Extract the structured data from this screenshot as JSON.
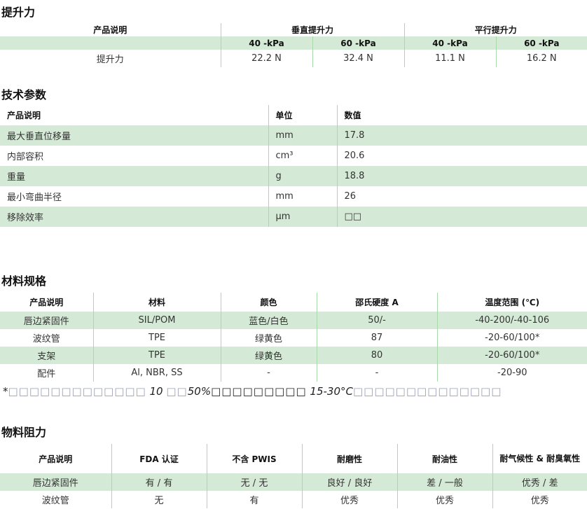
{
  "lift": {
    "title": "提升力",
    "col_product": "产品说明",
    "group_vertical": "垂直提升力",
    "group_parallel": "平行提升力",
    "pressures": [
      "40 -kPa",
      "60 -kPa",
      "40 -kPa",
      "60 -kPa"
    ],
    "row": {
      "label": "提升力",
      "values": [
        "22.2 N",
        "32.4 N",
        "11.1 N",
        "16.2 N"
      ]
    }
  },
  "tech": {
    "title": "技术参数",
    "headers": [
      "产品说明",
      "单位",
      "数值"
    ],
    "rows": [
      [
        "最大垂直位移量",
        "mm",
        "17.8"
      ],
      [
        "内部容积",
        "cm³",
        "20.6"
      ],
      [
        "重量",
        "g",
        "18.8"
      ],
      [
        "最小弯曲半径",
        "mm",
        "26"
      ],
      [
        "移除效率",
        "µm",
        "□□"
      ]
    ]
  },
  "materials": {
    "title": "材料规格",
    "headers": [
      "产品说明",
      "材料",
      "颜色",
      "邵氏硬度 A",
      "温度范围 (℃)"
    ],
    "rows": [
      [
        "唇边紧固件",
        "SIL/POM",
        "蓝色/白色",
        "50/-",
        "-40-200/-40-106"
      ],
      [
        "波纹管",
        "TPE",
        "绿黄色",
        "87",
        "-20-60/100*"
      ],
      [
        "支架",
        "TPE",
        "绿黄色",
        "80",
        "-20-60/100*"
      ],
      [
        "配件",
        "Al, NBR, SS",
        "-",
        "-",
        "-20-90"
      ]
    ],
    "footnote": {
      "star": "*",
      "p1": "□□□□□□□□□□□□□",
      "n1": " 10 ",
      "p2": "□□",
      "n2": "50%",
      "p3": "□□□□□□□□□",
      "n3": " 15-30°C",
      "p4": "□□□□□□□□□□□□□□"
    }
  },
  "resistance": {
    "title": "物料阻力",
    "headers": [
      "产品说明",
      "FDA  认证",
      "不含 PWIS",
      "耐磨性",
      "耐油性",
      "耐气候性 & 耐臭氧性"
    ],
    "rows": [
      [
        "唇边紧固件",
        "有 / 有",
        "无 / 无",
        "良好 / 良好",
        "差 / 一般",
        "优秀 / 差"
      ],
      [
        "波纹管",
        "无",
        "有",
        "优秀",
        "优秀",
        "优秀"
      ]
    ]
  },
  "colors": {
    "row_stripe": "#d5ead6",
    "divider": "#a9d8aa"
  }
}
